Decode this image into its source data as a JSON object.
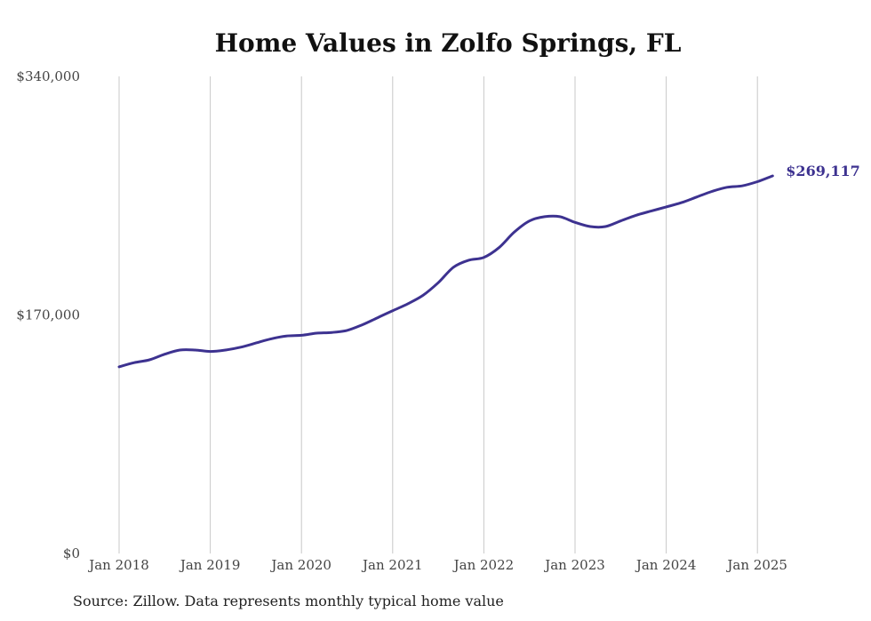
{
  "chart_data": {
    "type": "line",
    "title": "Home Values in Zolfo Springs, FL",
    "xlabel": "",
    "ylabel": "",
    "ylim": [
      0,
      340000
    ],
    "y_ticks": [
      0,
      170000,
      340000
    ],
    "y_tick_labels": [
      "$0",
      "$170,000",
      "$340,000"
    ],
    "x_ticks": [
      "2018-01",
      "2019-01",
      "2020-01",
      "2021-01",
      "2022-01",
      "2023-01",
      "2024-01",
      "2025-01"
    ],
    "x_tick_labels": [
      "Jan 2018",
      "Jan 2019",
      "Jan 2020",
      "Jan 2021",
      "Jan 2022",
      "Jan 2023",
      "Jan 2024",
      "Jan 2025"
    ],
    "grid": "vertical",
    "line_color": "#3d3290",
    "series": [
      {
        "x": [
          "2018-01",
          "2018-03",
          "2018-05",
          "2018-07",
          "2018-09",
          "2018-11",
          "2019-01",
          "2019-03",
          "2019-05",
          "2019-07",
          "2019-09",
          "2019-11",
          "2020-01",
          "2020-03",
          "2020-05",
          "2020-07",
          "2020-09",
          "2020-11",
          "2021-01",
          "2021-03",
          "2021-05",
          "2021-07",
          "2021-09",
          "2021-11",
          "2022-01",
          "2022-03",
          "2022-05",
          "2022-07",
          "2022-09",
          "2022-11",
          "2023-01",
          "2023-03",
          "2023-05",
          "2023-07",
          "2023-09",
          "2023-11",
          "2024-01",
          "2024-03",
          "2024-05",
          "2024-07",
          "2024-09",
          "2024-11",
          "2025-01",
          "2025-03"
        ],
        "values": [
          133000,
          136000,
          138000,
          142000,
          145000,
          145000,
          144000,
          145000,
          147000,
          150000,
          153000,
          155000,
          155500,
          157000,
          157500,
          159000,
          163000,
          168000,
          173000,
          178000,
          184000,
          193000,
          204000,
          209000,
          211000,
          218000,
          229000,
          237000,
          240000,
          240000,
          236000,
          233000,
          233000,
          237000,
          241000,
          244000,
          247000,
          250000,
          254000,
          258000,
          261000,
          262000,
          265000,
          269117
        ]
      }
    ],
    "end_label": "$269,117",
    "source_note": "Source: Zillow. Data represents monthly typical home value"
  }
}
